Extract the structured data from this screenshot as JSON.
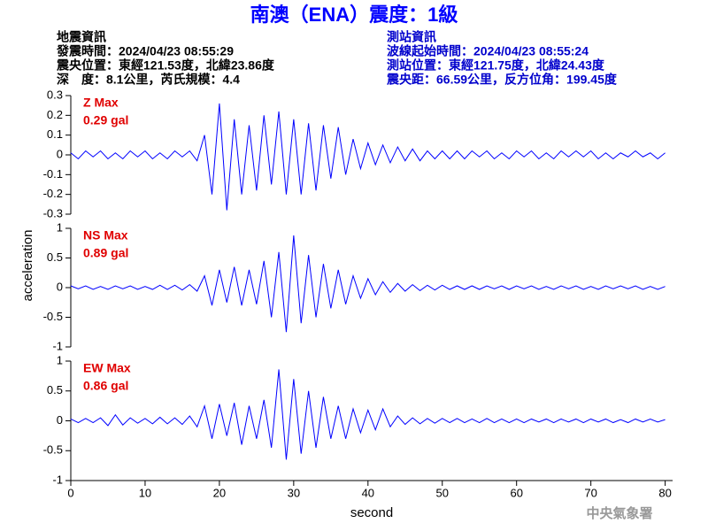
{
  "header": {
    "left": [
      "地震資訊",
      "發震時間：2024/04/23 08:55:29",
      "震央位置：東經121.53度，北緯23.86度",
      "深　度：8.1公里，芮氏規模：4.4"
    ],
    "right": [
      "測站資訊",
      "波線起始時間：2024/04/23 08:55:24",
      "測站位置：東經121.75度，北緯24.43度",
      "震央距：66.59公里，反方位角：199.45度"
    ],
    "footer": "中央氣象署"
  },
  "chart_data": [
    {
      "type": "line",
      "title": "南澳（ENA）震度：1級",
      "annotation": [
        "Z Max",
        "0.29 gal"
      ],
      "color": "#0000ff",
      "x": [
        0,
        1,
        2,
        3,
        4,
        5,
        6,
        7,
        8,
        9,
        10,
        11,
        12,
        13,
        14,
        15,
        16,
        17,
        18,
        19,
        20,
        21,
        22,
        23,
        24,
        25,
        26,
        27,
        28,
        29,
        30,
        31,
        32,
        33,
        34,
        35,
        36,
        37,
        38,
        39,
        40,
        41,
        42,
        43,
        44,
        45,
        46,
        47,
        48,
        49,
        50,
        51,
        52,
        53,
        54,
        55,
        56,
        57,
        58,
        59,
        60,
        61,
        62,
        63,
        64,
        65,
        66,
        67,
        68,
        69,
        70,
        71,
        72,
        73,
        74,
        75,
        76,
        77,
        78,
        79,
        80
      ],
      "values": [
        0.01,
        -0.02,
        0.02,
        -0.01,
        0.02,
        -0.02,
        0.01,
        -0.02,
        0.02,
        -0.01,
        0.02,
        -0.02,
        0.01,
        -0.02,
        0.02,
        -0.01,
        0.02,
        -0.03,
        0.1,
        -0.2,
        0.26,
        -0.28,
        0.18,
        -0.2,
        0.15,
        -0.18,
        0.2,
        -0.15,
        0.22,
        -0.2,
        0.18,
        -0.2,
        0.16,
        -0.18,
        0.15,
        -0.12,
        0.14,
        -0.1,
        0.08,
        -0.07,
        0.06,
        -0.05,
        0.05,
        -0.04,
        0.04,
        -0.03,
        0.03,
        -0.03,
        0.02,
        -0.02,
        0.02,
        -0.02,
        0.02,
        -0.02,
        0.02,
        -0.01,
        0.02,
        -0.02,
        0.01,
        -0.02,
        0.02,
        -0.01,
        0.02,
        -0.02,
        0.01,
        -0.02,
        0.02,
        -0.01,
        0.02,
        -0.01,
        0.02,
        -0.02,
        0.01,
        -0.02,
        0.01,
        -0.01,
        0.02,
        -0.01,
        0.01,
        -0.02,
        0.01
      ],
      "xlim": [
        0,
        81
      ],
      "ylim": [
        -0.3,
        0.3
      ],
      "yticks": [
        0.3,
        0.2,
        0.1,
        0,
        -0.1,
        -0.2,
        -0.3
      ]
    },
    {
      "type": "line",
      "annotation": [
        "NS Max",
        "0.89 gal"
      ],
      "color": "#0000ff",
      "ylabel": "acceleration",
      "x": [
        0,
        1,
        2,
        3,
        4,
        5,
        6,
        7,
        8,
        9,
        10,
        11,
        12,
        13,
        14,
        15,
        16,
        17,
        18,
        19,
        20,
        21,
        22,
        23,
        24,
        25,
        26,
        27,
        28,
        29,
        30,
        31,
        32,
        33,
        34,
        35,
        36,
        37,
        38,
        39,
        40,
        41,
        42,
        43,
        44,
        45,
        46,
        47,
        48,
        49,
        50,
        51,
        52,
        53,
        54,
        55,
        56,
        57,
        58,
        59,
        60,
        61,
        62,
        63,
        64,
        65,
        66,
        67,
        68,
        69,
        70,
        71,
        72,
        73,
        74,
        75,
        76,
        77,
        78,
        79,
        80
      ],
      "values": [
        0.03,
        -0.02,
        0.03,
        -0.03,
        0.02,
        -0.03,
        0.03,
        -0.02,
        0.03,
        -0.03,
        0.02,
        -0.03,
        0.04,
        -0.03,
        0.04,
        -0.04,
        0.05,
        -0.06,
        0.2,
        -0.3,
        0.3,
        -0.25,
        0.35,
        -0.3,
        0.3,
        -0.28,
        0.45,
        -0.5,
        0.6,
        -0.75,
        0.88,
        -0.6,
        0.55,
        -0.5,
        0.4,
        -0.35,
        0.3,
        -0.28,
        0.2,
        -0.18,
        0.15,
        -0.12,
        0.1,
        -0.08,
        0.07,
        -0.06,
        0.05,
        -0.05,
        0.04,
        -0.04,
        0.04,
        -0.03,
        0.03,
        -0.03,
        0.03,
        -0.03,
        0.03,
        -0.02,
        0.03,
        -0.03,
        0.03,
        -0.02,
        0.03,
        -0.03,
        0.02,
        -0.03,
        0.03,
        -0.02,
        0.03,
        -0.03,
        0.02,
        -0.03,
        0.03,
        -0.02,
        0.03,
        -0.02,
        0.03,
        -0.03,
        0.02,
        -0.03,
        0.02
      ],
      "xlim": [
        0,
        81
      ],
      "ylim": [
        -1,
        1
      ],
      "yticks": [
        1,
        0.5,
        0,
        -0.5,
        -1
      ]
    },
    {
      "type": "line",
      "annotation": [
        "EW Max",
        "0.86 gal"
      ],
      "color": "#0000ff",
      "xlabel": "second",
      "x": [
        0,
        1,
        2,
        3,
        4,
        5,
        6,
        7,
        8,
        9,
        10,
        11,
        12,
        13,
        14,
        15,
        16,
        17,
        18,
        19,
        20,
        21,
        22,
        23,
        24,
        25,
        26,
        27,
        28,
        29,
        30,
        31,
        32,
        33,
        34,
        35,
        36,
        37,
        38,
        39,
        40,
        41,
        42,
        43,
        44,
        45,
        46,
        47,
        48,
        49,
        50,
        51,
        52,
        53,
        54,
        55,
        56,
        57,
        58,
        59,
        60,
        61,
        62,
        63,
        64,
        65,
        66,
        67,
        68,
        69,
        70,
        71,
        72,
        73,
        74,
        75,
        76,
        77,
        78,
        79,
        80
      ],
      "values": [
        0.03,
        -0.03,
        0.04,
        -0.03,
        0.05,
        -0.08,
        0.1,
        -0.07,
        0.05,
        -0.04,
        0.04,
        -0.05,
        0.06,
        -0.05,
        0.05,
        -0.06,
        0.08,
        -0.1,
        0.25,
        -0.3,
        0.28,
        -0.25,
        0.3,
        -0.4,
        0.25,
        -0.3,
        0.35,
        -0.45,
        0.86,
        -0.65,
        0.7,
        -0.55,
        0.5,
        -0.45,
        0.4,
        -0.3,
        0.25,
        -0.3,
        0.2,
        -0.2,
        0.18,
        -0.15,
        0.2,
        -0.1,
        0.08,
        -0.06,
        0.05,
        -0.05,
        0.04,
        -0.04,
        0.04,
        -0.03,
        0.04,
        -0.03,
        0.03,
        -0.03,
        0.04,
        -0.03,
        0.03,
        -0.03,
        0.03,
        -0.03,
        0.03,
        -0.02,
        0.03,
        -0.03,
        0.03,
        -0.02,
        0.03,
        -0.03,
        0.03,
        -0.02,
        0.03,
        -0.03,
        0.02,
        -0.03,
        0.03,
        -0.02,
        0.03,
        -0.02,
        0.02
      ],
      "xlim": [
        0,
        81
      ],
      "ylim": [
        -1,
        1
      ],
      "yticks": [
        1,
        0.5,
        0,
        -0.5,
        -1
      ],
      "xticks": [
        0,
        10,
        20,
        30,
        40,
        50,
        60,
        70,
        80
      ]
    }
  ]
}
